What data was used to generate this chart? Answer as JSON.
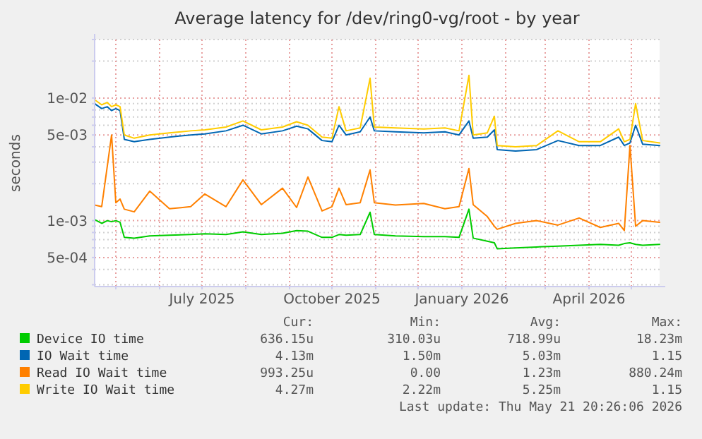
{
  "chart_data": {
    "type": "line",
    "title": "Average latency for /dev/ring0-vg/root - by year",
    "ylabel": "seconds",
    "log": "y",
    "grid": true,
    "legend": "bottom",
    "marker": "none",
    "line_style": "solid",
    "xlim": [
      "2025-04-16",
      "2026-05-21"
    ],
    "xticks": [
      {
        "value": "2025-05-01",
        "label": null
      },
      {
        "value": "2025-06-01",
        "label": null
      },
      {
        "value": "2025-07-01",
        "label": "July 2025"
      },
      {
        "value": "2025-08-01",
        "label": null
      },
      {
        "value": "2025-09-01",
        "label": null
      },
      {
        "value": "2025-10-01",
        "label": "October 2025"
      },
      {
        "value": "2025-11-01",
        "label": null
      },
      {
        "value": "2025-12-01",
        "label": null
      },
      {
        "value": "2026-01-01",
        "label": "January 2026"
      },
      {
        "value": "2026-02-01",
        "label": null
      },
      {
        "value": "2026-03-01",
        "label": null
      },
      {
        "value": "2026-04-01",
        "label": "April 2026"
      },
      {
        "value": "2026-05-01",
        "label": null
      }
    ],
    "ylim": [
      0.00029,
      0.03
    ],
    "yticks": [
      {
        "value": 0.0003,
        "label": null
      },
      {
        "value": 0.0004,
        "label": null
      },
      {
        "value": 0.0005,
        "label": "5e-04"
      },
      {
        "value": 0.0006,
        "label": null
      },
      {
        "value": 0.0007,
        "label": null
      },
      {
        "value": 0.0008,
        "label": null
      },
      {
        "value": 0.0009,
        "label": null
      },
      {
        "value": 0.001,
        "label": "1e-03"
      },
      {
        "value": 0.002,
        "label": null
      },
      {
        "value": 0.003,
        "label": null
      },
      {
        "value": 0.004,
        "label": null
      },
      {
        "value": 0.005,
        "label": "5e-03"
      },
      {
        "value": 0.006,
        "label": null
      },
      {
        "value": 0.007,
        "label": null
      },
      {
        "value": 0.008,
        "label": null
      },
      {
        "value": 0.009,
        "label": null
      },
      {
        "value": 0.01,
        "label": "1e-02"
      },
      {
        "value": 0.02,
        "label": null
      },
      {
        "value": 0.03,
        "label": null
      }
    ],
    "x": [
      "2025-04-16",
      "2025-04-21",
      "2025-04-25",
      "2025-04-28",
      "2025-05-01",
      "2025-05-04",
      "2025-05-07",
      "2025-05-14",
      "2025-05-25",
      "2025-06-08",
      "2025-06-23",
      "2025-07-03",
      "2025-07-18",
      "2025-07-30",
      "2025-08-12",
      "2025-08-27",
      "2025-09-06",
      "2025-09-14",
      "2025-09-24",
      "2025-10-01",
      "2025-10-06",
      "2025-10-11",
      "2025-10-21",
      "2025-10-28",
      "2025-10-31",
      "2025-11-15",
      "2025-12-05",
      "2025-12-20",
      "2025-12-30",
      "2026-01-06",
      "2026-01-09",
      "2026-01-19",
      "2026-01-24",
      "2026-01-26",
      "2026-02-08",
      "2026-02-23",
      "2026-03-10",
      "2026-03-25",
      "2026-04-09",
      "2026-04-22",
      "2026-04-26",
      "2026-04-30",
      "2026-05-04",
      "2026-05-09",
      "2026-05-21"
    ],
    "series": [
      {
        "name": "Device IO time",
        "color": "#00cc00",
        "values": [
          0.00102,
          0.00095,
          0.001,
          0.00098,
          0.001,
          0.00097,
          0.00073,
          0.00072,
          0.00075,
          0.00076,
          0.00077,
          0.00078,
          0.00077,
          0.00081,
          0.00077,
          0.00079,
          0.00083,
          0.00082,
          0.00073,
          0.00073,
          0.00077,
          0.00076,
          0.00077,
          0.00117,
          0.00077,
          0.00075,
          0.00074,
          0.00074,
          0.00073,
          0.00124,
          0.00072,
          0.00068,
          0.00066,
          0.00059,
          0.0006,
          0.00061,
          0.00062,
          0.00063,
          0.00064,
          0.00063,
          0.00065,
          0.00066,
          0.00064,
          0.00063,
          0.00064
        ]
      },
      {
        "name": "IO Wait time",
        "color": "#0066b3",
        "values": [
          0.009,
          0.0082,
          0.0085,
          0.0079,
          0.0082,
          0.0079,
          0.0046,
          0.0044,
          0.0046,
          0.0048,
          0.005,
          0.0051,
          0.0054,
          0.006,
          0.0051,
          0.0054,
          0.0059,
          0.0056,
          0.0045,
          0.0044,
          0.006,
          0.005,
          0.0053,
          0.007,
          0.0054,
          0.0053,
          0.0052,
          0.0053,
          0.005,
          0.0065,
          0.0047,
          0.0048,
          0.0055,
          0.0038,
          0.0037,
          0.0038,
          0.0045,
          0.0041,
          0.0041,
          0.0048,
          0.0041,
          0.0043,
          0.006,
          0.0042,
          0.0041
        ]
      },
      {
        "name": "Read IO Wait time",
        "color": "#ff8000",
        "values": [
          0.00134,
          0.0013,
          0.0028,
          0.005,
          0.0014,
          0.0015,
          0.00124,
          0.00118,
          0.00174,
          0.00125,
          0.0013,
          0.00165,
          0.0013,
          0.00215,
          0.00135,
          0.00184,
          0.00128,
          0.00227,
          0.0012,
          0.0013,
          0.00184,
          0.00135,
          0.0014,
          0.00259,
          0.0014,
          0.00134,
          0.00138,
          0.00125,
          0.0013,
          0.00266,
          0.00135,
          0.00108,
          0.0009,
          0.00085,
          0.00095,
          0.001,
          0.00092,
          0.00105,
          0.00088,
          0.00095,
          0.00083,
          0.0041,
          0.0009,
          0.001,
          0.00097
        ]
      },
      {
        "name": "Write IO Wait time",
        "color": "#ffcc00",
        "values": [
          0.0097,
          0.0088,
          0.0092,
          0.0085,
          0.0088,
          0.0085,
          0.005,
          0.0047,
          0.005,
          0.0052,
          0.0054,
          0.0055,
          0.0058,
          0.0065,
          0.0055,
          0.0058,
          0.0064,
          0.006,
          0.0048,
          0.0047,
          0.0085,
          0.0054,
          0.0057,
          0.0145,
          0.0058,
          0.0057,
          0.0056,
          0.0057,
          0.0054,
          0.0153,
          0.005,
          0.0052,
          0.0071,
          0.0041,
          0.004,
          0.0041,
          0.0054,
          0.0044,
          0.0044,
          0.0056,
          0.0044,
          0.0046,
          0.009,
          0.0045,
          0.0043
        ]
      }
    ],
    "annotations": [
      "Cur:",
      "Min:",
      "Avg:",
      "Max:",
      "636.15u",
      "310.03u",
      "718.99u",
      "18.23m",
      "4.13m",
      "1.50m",
      "5.03m",
      "1.15",
      "993.25u",
      "0.00",
      "1.23m",
      "880.24m",
      "4.27m",
      "2.22m",
      "5.25m",
      "1.15",
      "Last update: Thu May 21 20:26:06 2026"
    ]
  }
}
